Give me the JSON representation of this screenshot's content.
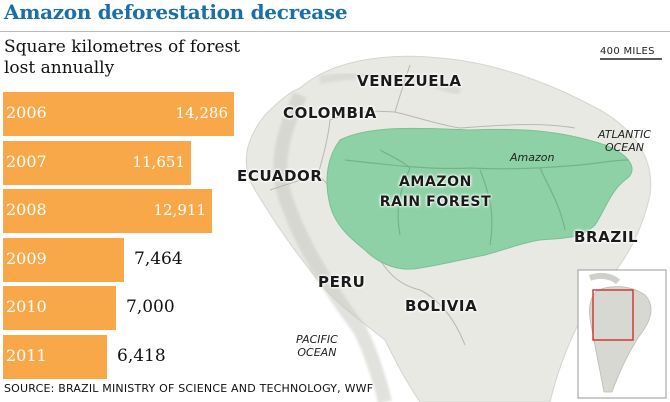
{
  "header": {
    "title": "Amazon deforestation decrease",
    "subtitle": "Square kilometres of forest lost annually"
  },
  "chart_data": {
    "type": "bar",
    "orientation": "horizontal",
    "categories": [
      "2006",
      "2007",
      "2008",
      "2009",
      "2010",
      "2011"
    ],
    "values": [
      14286,
      11651,
      12911,
      7464,
      7000,
      6418
    ],
    "value_labels": [
      "14,286",
      "11,651",
      "12,911",
      "7,464",
      "7,000",
      "6,418"
    ],
    "title": "Amazon deforestation decrease",
    "subtitle": "Square kilometres of forest lost annually",
    "xlabel": "",
    "ylabel": "",
    "grid": false,
    "bar_color": "#f9a849"
  },
  "map": {
    "scale_label": "400 MILES",
    "countries": [
      "VENEZUELA",
      "COLOMBIA",
      "ECUADOR",
      "PERU",
      "BOLIVIA",
      "BRAZIL"
    ],
    "region_label": "AMAZON\nRAIN FOREST",
    "river_label": "Amazon",
    "oceans": [
      "ATLANTIC\nOCEAN",
      "PACIFIC\nOCEAN"
    ],
    "forest_color": "#8fd1a6",
    "land_color": "#e9e9e4"
  },
  "source": "SOURCE: BRAZIL MINISTRY OF SCIENCE AND TECHNOLOGY, WWF"
}
